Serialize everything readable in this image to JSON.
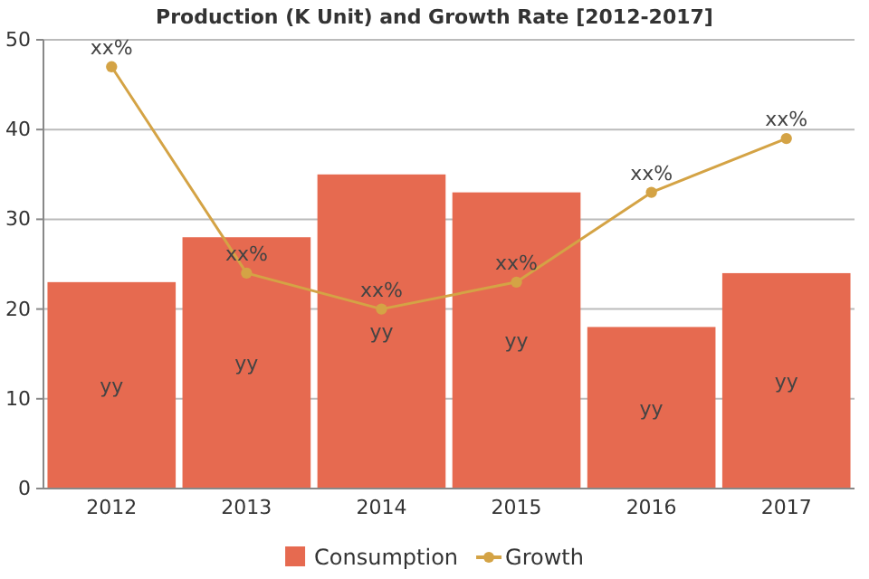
{
  "chart_data": {
    "type": "bar",
    "title": "Production (K Unit) and Growth Rate [2012-2017]",
    "categories": [
      "2012",
      "2013",
      "2014",
      "2015",
      "2016",
      "2017"
    ],
    "series": [
      {
        "name": "Consumption",
        "color": "#e66a50",
        "values": [
          23,
          28,
          35,
          33,
          18,
          24
        ],
        "value_labels": [
          "yy",
          "yy",
          "yy",
          "yy",
          "yy",
          "yy"
        ]
      },
      {
        "name": "Growth",
        "type": "line",
        "color": "#d4a345",
        "values": [
          47,
          24,
          20,
          23,
          33,
          39
        ],
        "value_labels": [
          "xx%",
          "xx%",
          "xx%",
          "xx%",
          "xx%",
          "xx%"
        ]
      }
    ],
    "ylim": [
      0,
      50
    ],
    "yticks": [
      0,
      10,
      20,
      30,
      40,
      50
    ],
    "grid": "y",
    "legend": "bottom",
    "marker": "circle"
  }
}
